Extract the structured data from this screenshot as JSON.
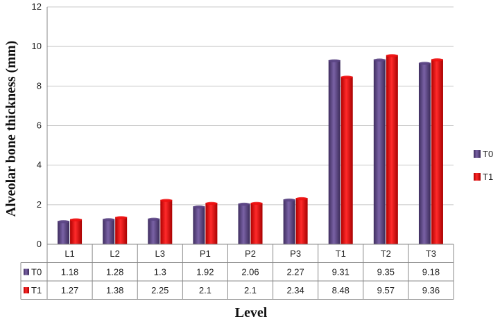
{
  "chart_data": {
    "type": "bar",
    "title": "",
    "xlabel": "Level",
    "ylabel": "Alveolar bone thickness (mm)",
    "ylim": [
      0,
      12
    ],
    "yticks": [
      0,
      2,
      4,
      6,
      8,
      10,
      12
    ],
    "grid": true,
    "legend_position": "right",
    "categories": [
      "L1",
      "L2",
      "L3",
      "P1",
      "P2",
      "P3",
      "T1",
      "T2",
      "T3"
    ],
    "series": [
      {
        "name": "T0",
        "color": "#5b4484",
        "values": [
          1.18,
          1.28,
          1.3,
          1.92,
          2.06,
          2.27,
          9.31,
          9.35,
          9.18
        ],
        "labels": [
          "1.18",
          "1.28",
          "1.3",
          "1.92",
          "2.06",
          "2.27",
          "9.31",
          "9.35",
          "9.18"
        ]
      },
      {
        "name": "T1",
        "color": "#ee1111",
        "values": [
          1.27,
          1.38,
          2.25,
          2.1,
          2.1,
          2.34,
          8.48,
          9.57,
          9.36
        ],
        "labels": [
          "1.27",
          "1.38",
          "2.25",
          "2.1",
          "2.1",
          "2.34",
          "8.48",
          "9.57",
          "9.36"
        ]
      }
    ]
  }
}
